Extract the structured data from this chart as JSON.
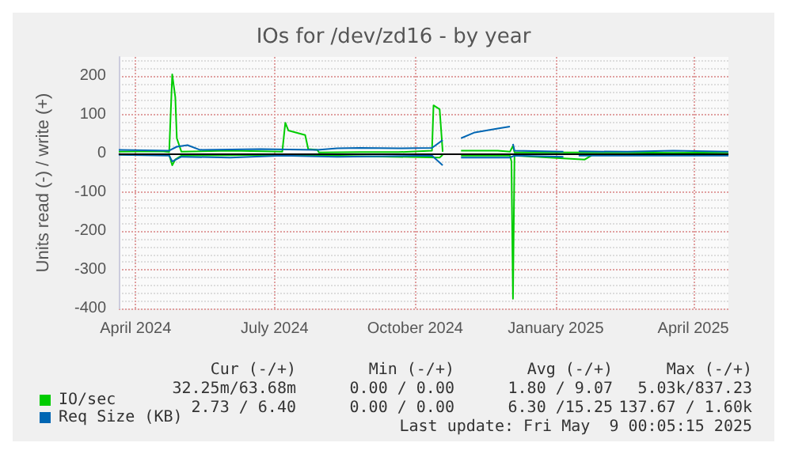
{
  "chart_data": {
    "type": "line",
    "title": "IOs for /dev/zd16 - by year",
    "ylabel": "Units read (-) / write (+)",
    "xlim": [
      "2024-03-21",
      "2025-04-24"
    ],
    "xticks": [
      {
        "value": "2024-04-01",
        "label": "April 2024"
      },
      {
        "value": "2024-07-01",
        "label": "July 2024"
      },
      {
        "value": "2024-10-01",
        "label": "October 2024"
      },
      {
        "value": "2025-01-01",
        "label": "January 2025"
      },
      {
        "value": "2025-04-01",
        "label": "April 2025"
      }
    ],
    "ylim": [
      -400,
      250
    ],
    "yticks": [
      -400,
      -300,
      -200,
      -100,
      0,
      100,
      200
    ],
    "grid": true,
    "legend": "bottom left",
    "ref_lines": [
      {
        "axis": "y",
        "value": 0,
        "color": "#000000"
      }
    ],
    "series": [
      {
        "name": "IO/sec",
        "color": "#00cc00",
        "x": [
          "2024-03-21",
          "2024-04-18",
          "2024-04-23",
          "2024-04-25",
          "2024-04-27",
          "2024-04-28",
          "2024-05-01",
          "2024-06-02",
          "2024-07-06",
          "2024-07-08",
          "2024-07-10",
          "2024-07-21",
          "2024-07-23",
          "2024-07-29",
          "2024-07-30",
          "2024-08-26",
          "2024-09-20",
          "2024-10-12",
          "2024-10-13",
          "2024-10-17",
          "2024-10-19",
          "2024-10-25",
          "2024-10-31",
          "2024-11-24",
          "2024-12-02",
          "2024-12-04",
          "2024-12-05",
          "2025-01-06",
          "2025-02-17",
          "2025-03-19",
          "2025-04-24"
        ],
        "values": [
          5,
          6,
          4,
          205,
          146,
          40,
          5,
          8,
          5,
          80,
          60,
          48,
          12,
          10,
          3,
          4,
          4,
          8,
          125,
          115,
          5,
          null,
          8,
          8,
          5,
          20,
          3,
          3,
          3,
          2,
          3
        ]
      },
      {
        "color": "#00cc00",
        "x": [
          "2024-03-21",
          "2024-04-23",
          "2024-04-25",
          "2024-04-27",
          "2024-05-01",
          "2024-07-08",
          "2024-10-17",
          "2024-10-19",
          "2024-10-25",
          "2024-10-31",
          "2024-12-02",
          "2024-12-03",
          "2024-12-04",
          "2024-12-05",
          "2025-01-20",
          "2025-01-25",
          "2025-04-24"
        ],
        "values": [
          -2,
          -3,
          -30,
          -15,
          -5,
          -3,
          -10,
          -3,
          null,
          -5,
          -5,
          -20,
          -375,
          -5,
          -15,
          -3,
          -2
        ]
      },
      {
        "name": "Req Size (KB)",
        "color": "#0066b3",
        "x": [
          "2024-03-21",
          "2024-04-23",
          "2024-04-28",
          "2024-05-05",
          "2024-05-13",
          "2024-06-22",
          "2024-07-29",
          "2024-08-11",
          "2024-08-26",
          "2024-09-20",
          "2024-10-12",
          "2024-10-19",
          "2024-10-25",
          "2024-10-31",
          "2024-11-09",
          "2024-11-24",
          "2024-12-02",
          "2024-12-03",
          "2024-12-04",
          "2024-12-05",
          "2025-01-06",
          "2025-01-10",
          "2025-01-16",
          "2025-02-17",
          "2025-03-19",
          "2025-04-24"
        ],
        "values": [
          10,
          8,
          18,
          22,
          10,
          12,
          10,
          14,
          15,
          14,
          15,
          35,
          null,
          40,
          55,
          65,
          70,
          null,
          25,
          8,
          5,
          null,
          6,
          5,
          8,
          5
        ]
      },
      {
        "color": "#0066b3",
        "x": [
          "2024-03-21",
          "2024-04-23",
          "2024-04-25",
          "2024-05-01",
          "2024-06-02",
          "2024-07-06",
          "2024-08-11",
          "2024-10-12",
          "2024-10-19",
          "2024-10-25",
          "2024-10-31",
          "2024-12-02",
          "2024-12-05",
          "2025-01-06",
          "2025-01-10",
          "2025-01-16",
          "2025-04-24"
        ],
        "values": [
          -3,
          -5,
          -20,
          -8,
          -10,
          -5,
          -8,
          -5,
          -30,
          null,
          -10,
          -10,
          -5,
          -8,
          null,
          -5,
          -5
        ]
      }
    ],
    "annotations": [
      "Cur (-/+)",
      "Min (-/+)",
      "Avg (-/+)",
      "Max (-/+)",
      "32.25m/63.68m",
      "0.00 / 0.00",
      "1.80 / 9.07",
      "5.03k/837.23",
      "2.73 / 6.40",
      "0.00 / 0.00",
      "6.30 /15.25",
      "137.67 / 1.60k",
      "Last update: Fri May  9 00:05:15 2025"
    ]
  }
}
